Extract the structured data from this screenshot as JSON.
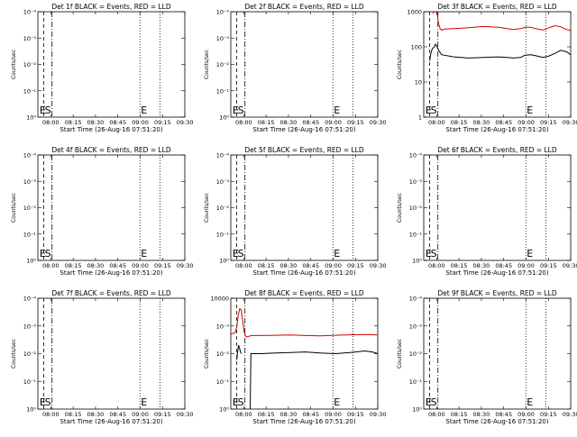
{
  "chart_data": [
    {
      "type": "line",
      "title": "Det 1f BLACK = Events, RED = LLD",
      "xlabel": "Start Time (26-Aug-16 07:51:20)",
      "ylabel": "Counts/sec",
      "yscale": "log",
      "xlim": [
        0,
        98.6
      ],
      "ylim": [
        1,
        10000
      ],
      "x_ticks": [
        "08:00",
        "08:15",
        "08:30",
        "08:45",
        "09:00",
        "09:15",
        "09:30"
      ],
      "y_ticks": [
        "10⁰",
        "10⁻¹",
        "10⁻²",
        "10⁻³",
        "10⁻⁴"
      ],
      "markers": [
        {
          "label": "E",
          "minute": 0.5,
          "style": "none"
        },
        {
          "label": "S",
          "minute": 4.0,
          "style": "dash"
        },
        {
          "label": "",
          "minute": 9.5,
          "style": "dashdot"
        },
        {
          "label": "E",
          "minute": 68.5,
          "style": "dot"
        },
        {
          "label": "",
          "minute": 82.0,
          "style": "dot"
        }
      ],
      "series": []
    },
    {
      "type": "line",
      "title": "Det 2f BLACK = Events, RED = LLD",
      "xlabel": "Start Time (26-Aug-16 07:51:20)",
      "ylabel": "Counts/sec",
      "yscale": "log",
      "xlim": [
        0,
        98.6
      ],
      "ylim": [
        1,
        10000
      ],
      "x_ticks": [
        "08:00",
        "08:15",
        "08:30",
        "08:45",
        "09:00",
        "09:15",
        "09:30"
      ],
      "y_ticks": [
        "10⁰",
        "10⁻¹",
        "10⁻²",
        "10⁻³",
        "10⁻⁴"
      ],
      "markers": [
        {
          "label": "E",
          "minute": 0.5,
          "style": "none"
        },
        {
          "label": "S",
          "minute": 4.0,
          "style": "dash"
        },
        {
          "label": "",
          "minute": 9.5,
          "style": "dashdot"
        },
        {
          "label": "E",
          "minute": 68.5,
          "style": "dot"
        },
        {
          "label": "",
          "minute": 82.0,
          "style": "dot"
        }
      ],
      "series": []
    },
    {
      "type": "line",
      "title": "Det 3f BLACK = Events, RED = LLD",
      "xlabel": "Start Time (26-Aug-16 07:51:20)",
      "ylabel": "Counts/sec",
      "yscale": "log",
      "xlim": [
        0,
        98.6
      ],
      "ylim": [
        1,
        1000
      ],
      "x_ticks": [
        "08:00",
        "08:15",
        "08:30",
        "08:45",
        "09:00",
        "09:15",
        "09:30"
      ],
      "y_ticks": [
        "1",
        "10",
        "100",
        "1000"
      ],
      "markers": [
        {
          "label": "E",
          "minute": 0.5,
          "style": "none"
        },
        {
          "label": "S",
          "minute": 4.0,
          "style": "dash"
        },
        {
          "label": "",
          "minute": 9.5,
          "style": "dashdot"
        },
        {
          "label": "E",
          "minute": 68.5,
          "style": "dot"
        },
        {
          "label": "",
          "minute": 82.0,
          "style": "dot"
        }
      ],
      "series": [
        {
          "color": "#d00000",
          "x": [
            6,
            7,
            8,
            9,
            10,
            11,
            12,
            14,
            20,
            30,
            40,
            50,
            56,
            60,
            65,
            68,
            72,
            75,
            80,
            84,
            88,
            92,
            96,
            98.6
          ],
          "y": [
            900,
            1000,
            1000,
            900,
            450,
            330,
            300,
            320,
            330,
            350,
            380,
            360,
            330,
            310,
            330,
            360,
            360,
            330,
            300,
            350,
            400,
            370,
            310,
            290
          ]
        },
        {
          "color": "#000000",
          "x": [
            4,
            4.6,
            5.3,
            6,
            7,
            8,
            9,
            10,
            12,
            20,
            30,
            40,
            50,
            56,
            60,
            65,
            68,
            72,
            76,
            80,
            84,
            88,
            92,
            96,
            98.6
          ],
          "y": [
            40,
            60,
            80,
            90,
            100,
            120,
            100,
            80,
            60,
            52,
            48,
            50,
            52,
            50,
            48,
            50,
            58,
            60,
            55,
            50,
            55,
            65,
            80,
            72,
            60
          ]
        }
      ]
    },
    {
      "type": "line",
      "title": "Det 4f BLACK = Events, RED = LLD",
      "xlabel": "Start Time (26-Aug-16 07:51:20)",
      "ylabel": "Counts/sec",
      "yscale": "log",
      "xlim": [
        0,
        98.6
      ],
      "ylim": [
        1,
        10000
      ],
      "x_ticks": [
        "08:00",
        "08:15",
        "08:30",
        "08:45",
        "09:00",
        "09:15",
        "09:30"
      ],
      "y_ticks": [
        "10⁰",
        "10⁻¹",
        "10⁻²",
        "10⁻³",
        "10⁻⁴"
      ],
      "markers": [
        {
          "label": "E",
          "minute": 0.5,
          "style": "none"
        },
        {
          "label": "S",
          "minute": 4.0,
          "style": "dash"
        },
        {
          "label": "",
          "minute": 9.5,
          "style": "dashdot"
        },
        {
          "label": "E",
          "minute": 68.5,
          "style": "dot"
        },
        {
          "label": "",
          "minute": 82.0,
          "style": "dot"
        }
      ],
      "series": []
    },
    {
      "type": "line",
      "title": "Det 5f BLACK = Events, RED = LLD",
      "xlabel": "Start Time (26-Aug-16 07:51:20)",
      "ylabel": "Counts/sec",
      "yscale": "log",
      "xlim": [
        0,
        98.6
      ],
      "ylim": [
        1,
        10000
      ],
      "x_ticks": [
        "08:00",
        "08:15",
        "08:30",
        "08:45",
        "09:00",
        "09:15",
        "09:30"
      ],
      "y_ticks": [
        "10⁰",
        "10⁻¹",
        "10⁻²",
        "10⁻³",
        "10⁻⁴"
      ],
      "markers": [
        {
          "label": "E",
          "minute": 0.5,
          "style": "none"
        },
        {
          "label": "S",
          "minute": 4.0,
          "style": "dash"
        },
        {
          "label": "",
          "minute": 9.5,
          "style": "dashdot"
        },
        {
          "label": "E",
          "minute": 68.5,
          "style": "dot"
        },
        {
          "label": "",
          "minute": 82.0,
          "style": "dot"
        }
      ],
      "series": []
    },
    {
      "type": "line",
      "title": "Det 6f BLACK = Events, RED = LLD",
      "xlabel": "Start Time (26-Aug-16 07:51:20)",
      "ylabel": "Counts/sec",
      "yscale": "log",
      "xlim": [
        0,
        98.6
      ],
      "ylim": [
        1,
        10000
      ],
      "x_ticks": [
        "08:00",
        "08:15",
        "08:30",
        "08:45",
        "09:00",
        "09:15",
        "09:30"
      ],
      "y_ticks": [
        "10⁰",
        "10⁻¹",
        "10⁻²",
        "10⁻³",
        "10⁻⁴"
      ],
      "markers": [
        {
          "label": "E",
          "minute": 0.5,
          "style": "none"
        },
        {
          "label": "S",
          "minute": 4.0,
          "style": "dash"
        },
        {
          "label": "",
          "minute": 9.5,
          "style": "dashdot"
        },
        {
          "label": "E",
          "minute": 68.5,
          "style": "dot"
        },
        {
          "label": "",
          "minute": 82.0,
          "style": "dot"
        }
      ],
      "series": []
    },
    {
      "type": "line",
      "title": "Det 7f BLACK = Events, RED = LLD",
      "xlabel": "Start Time (26-Aug-16 07:51:20)",
      "ylabel": "Counts/sec",
      "yscale": "log",
      "xlim": [
        0,
        98.6
      ],
      "ylim": [
        1,
        10000
      ],
      "x_ticks": [
        "08:00",
        "08:15",
        "08:30",
        "08:45",
        "09:00",
        "09:15",
        "09:30"
      ],
      "y_ticks": [
        "10⁰",
        "10⁻¹",
        "10⁻²",
        "10⁻³",
        "10⁻⁴"
      ],
      "markers": [
        {
          "label": "E",
          "minute": 0.5,
          "style": "none"
        },
        {
          "label": "S",
          "minute": 4.0,
          "style": "dash"
        },
        {
          "label": "",
          "minute": 9.5,
          "style": "dashdot"
        },
        {
          "label": "E",
          "minute": 68.5,
          "style": "dot"
        },
        {
          "label": "",
          "minute": 82.0,
          "style": "dot"
        }
      ],
      "series": []
    },
    {
      "type": "line",
      "title": "Det 8f BLACK = Events, RED = LLD",
      "xlabel": "Start Time (26-Aug-16 07:51:20)",
      "ylabel": "Counts/sec",
      "yscale": "log",
      "xlim": [
        0,
        98.6
      ],
      "ylim": [
        1,
        10000
      ],
      "x_ticks": [
        "08:00",
        "08:15",
        "08:30",
        "08:45",
        "09:00",
        "09:15",
        "09:30"
      ],
      "y_ticks": [
        "10⁰",
        "10⁻¹",
        "10⁻²",
        "10⁻³",
        "10000"
      ],
      "markers": [
        {
          "label": "E",
          "minute": 0.5,
          "style": "none"
        },
        {
          "label": "S",
          "minute": 4.0,
          "style": "dash"
        },
        {
          "label": "",
          "minute": 9.5,
          "style": "dashdot"
        },
        {
          "label": "E",
          "minute": 68.5,
          "style": "dot"
        },
        {
          "label": "",
          "minute": 82.0,
          "style": "dot"
        }
      ],
      "series": [
        {
          "color": "#d00000",
          "x": [
            0,
            1,
            2,
            3,
            4,
            5,
            6,
            7,
            8,
            9,
            10,
            11,
            12,
            14,
            20,
            30,
            40,
            50,
            60,
            70,
            80,
            90,
            98.6
          ],
          "y": [
            500,
            520,
            550,
            600,
            900,
            2500,
            4200,
            3800,
            1500,
            600,
            420,
            400,
            420,
            450,
            450,
            460,
            470,
            450,
            440,
            460,
            480,
            490,
            470
          ]
        },
        {
          "color": "#000000",
          "x": [
            4,
            4.6,
            5.2,
            5.8,
            6.4,
            7
          ],
          "y": [
            60,
            120,
            200,
            160,
            120,
            100
          ]
        },
        {
          "color": "#000000",
          "x": [
            13,
            13.5,
            15,
            20,
            30,
            40,
            50,
            60,
            70,
            80,
            90,
            95,
            98.6
          ],
          "y": [
            1,
            100,
            100,
            100,
            105,
            110,
            115,
            105,
            100,
            110,
            125,
            115,
            100
          ]
        }
      ]
    },
    {
      "type": "line",
      "title": "Det 9f BLACK = Events, RED = LLD",
      "xlabel": "Start Time (26-Aug-16 07:51:20)",
      "ylabel": "Counts/sec",
      "yscale": "log",
      "xlim": [
        0,
        98.6
      ],
      "ylim": [
        1,
        10000
      ],
      "x_ticks": [
        "08:00",
        "08:15",
        "08:30",
        "08:45",
        "09:00",
        "09:15",
        "09:30"
      ],
      "y_ticks": [
        "10⁰",
        "10⁻¹",
        "10⁻²",
        "10⁻³",
        "10⁻⁴"
      ],
      "markers": [
        {
          "label": "E",
          "minute": 0.5,
          "style": "none"
        },
        {
          "label": "S",
          "minute": 4.0,
          "style": "dash"
        },
        {
          "label": "",
          "minute": 9.5,
          "style": "dashdot"
        },
        {
          "label": "E",
          "minute": 68.5,
          "style": "dot"
        },
        {
          "label": "",
          "minute": 82.0,
          "style": "dot"
        }
      ],
      "series": []
    }
  ]
}
